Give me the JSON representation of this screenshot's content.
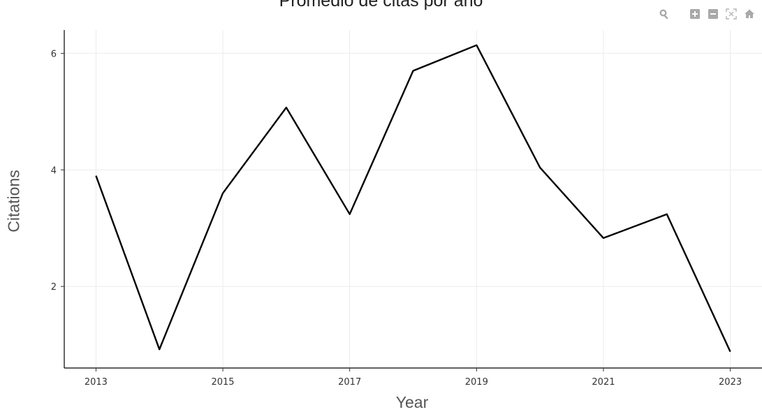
{
  "chart_data": {
    "type": "line",
    "title": "Promedio de citas por año",
    "xlabel": "Year",
    "ylabel": "Citations",
    "x": [
      2013,
      2014,
      2015,
      2016,
      2017,
      2018,
      2019,
      2020,
      2021,
      2022,
      2023
    ],
    "series": [
      {
        "values": [
          3.9,
          0.92,
          3.6,
          5.07,
          3.24,
          5.7,
          6.14,
          4.04,
          2.83,
          3.24,
          0.88
        ]
      }
    ],
    "xlim": [
      2012.5,
      2023.5
    ],
    "ylim": [
      0.6,
      6.4
    ],
    "x_ticks": [
      2013,
      2015,
      2017,
      2019,
      2021,
      2023
    ],
    "y_ticks": [
      2,
      4,
      6
    ],
    "grid": true,
    "line_color": "#000000",
    "grid_color": "#ebebeb"
  },
  "modebar": {
    "icons": [
      "zoom-icon",
      "zoom-in-icon",
      "zoom-out-icon",
      "autoscale-icon",
      "home-icon"
    ],
    "icon_color": "#a9a9a9"
  }
}
